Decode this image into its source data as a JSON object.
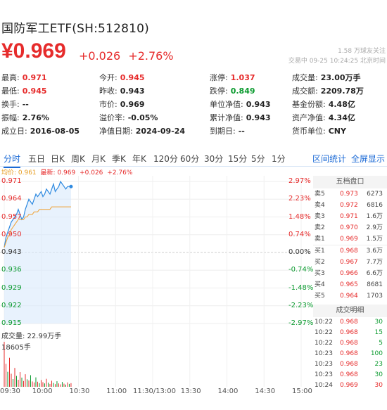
{
  "header": {
    "title": "国防军工ETF(SH:512810)",
    "price": "¥0.969",
    "change": "+0.026",
    "change_pct": "+2.76%",
    "followers": "1.58 万球友关注",
    "status": "交易中 09-25 10:24:25 北京时间"
  },
  "stats": [
    [
      {
        "label": "最高:",
        "value": "0.971",
        "color": "red"
      },
      {
        "label": "今开:",
        "value": "0.945",
        "color": "red"
      },
      {
        "label": "涨停:",
        "value": "1.037",
        "color": "red"
      },
      {
        "label": "成交量:",
        "value": "23.00万手",
        "color": ""
      }
    ],
    [
      {
        "label": "最低:",
        "value": "0.945",
        "color": "red"
      },
      {
        "label": "昨收:",
        "value": "0.943",
        "color": ""
      },
      {
        "label": "跌停:",
        "value": "0.849",
        "color": "green"
      },
      {
        "label": "成交额:",
        "value": "2209.78万",
        "color": ""
      }
    ],
    [
      {
        "label": "换手:",
        "value": "--",
        "color": ""
      },
      {
        "label": "市价:",
        "value": "0.969",
        "color": ""
      },
      {
        "label": "单位净值:",
        "value": "0.943",
        "color": ""
      },
      {
        "label": "基金份额:",
        "value": "4.48亿",
        "color": ""
      }
    ],
    [
      {
        "label": "振幅:",
        "value": "2.76%",
        "color": ""
      },
      {
        "label": "溢价率:",
        "value": "-0.05%",
        "color": ""
      },
      {
        "label": "累计净值:",
        "value": "0.943",
        "color": ""
      },
      {
        "label": "资产净值:",
        "value": "4.34亿",
        "color": ""
      }
    ],
    [
      {
        "label": "成立日:",
        "value": "2016-08-05",
        "color": ""
      },
      {
        "label": "净值日期:",
        "value": "2024-09-24",
        "color": ""
      },
      {
        "label": "到期日:",
        "value": "--",
        "color": ""
      },
      {
        "label": "货币单位:",
        "value": "CNY",
        "color": ""
      }
    ]
  ],
  "tabs": [
    "分时",
    "五日",
    "日K",
    "周K",
    "月K",
    "季K",
    "年K",
    "120分",
    "60分",
    "30分",
    "15分",
    "5分",
    "1分"
  ],
  "tab_links": [
    "区间统计",
    "全屏显示"
  ],
  "avg_line": {
    "avg": "均价: 0.961",
    "latest": "最新: 0.969",
    "chg": "+0.026",
    "pct": "+2.76%"
  },
  "price_axis": [
    "0.971",
    "0.964",
    "0.957",
    "0.950",
    "0.943",
    "0.936",
    "0.929",
    "0.922",
    "0.915"
  ],
  "pct_axis": [
    "2.97%",
    "2.23%",
    "1.48%",
    "0.74%",
    "0.00%",
    "-0.74%",
    "-1.48%",
    "-2.23%",
    "-2.97%"
  ],
  "volume_label": "成交量: 22.99万手",
  "volume_max": "18605手",
  "time_axis": [
    "09:30",
    "10:00",
    "10:30",
    "11:00",
    "11:30/13:00",
    "13:30",
    "14:00",
    "14:30",
    "15:00"
  ],
  "order_book": {
    "title": "五档盘口",
    "asks": [
      {
        "label": "卖5",
        "price": "0.973",
        "vol": "6273"
      },
      {
        "label": "卖4",
        "price": "0.972",
        "vol": "6816"
      },
      {
        "label": "卖3",
        "price": "0.971",
        "vol": "1.6万"
      },
      {
        "label": "卖2",
        "price": "0.970",
        "vol": "2.9万"
      },
      {
        "label": "卖1",
        "price": "0.969",
        "vol": "1.5万"
      }
    ],
    "bids": [
      {
        "label": "买1",
        "price": "0.968",
        "vol": "3.6万"
      },
      {
        "label": "买2",
        "price": "0.967",
        "vol": "7.7万"
      },
      {
        "label": "买3",
        "price": "0.966",
        "vol": "6.6万"
      },
      {
        "label": "买4",
        "price": "0.965",
        "vol": "8681"
      },
      {
        "label": "买5",
        "price": "0.964",
        "vol": "1703"
      }
    ]
  },
  "trades": {
    "title": "成交明细",
    "rows": [
      {
        "time": "10:22",
        "price": "0.968",
        "vol": "30",
        "dir": "green"
      },
      {
        "time": "10:22",
        "price": "0.968",
        "vol": "15",
        "dir": "green"
      },
      {
        "time": "10:22",
        "price": "0.968",
        "vol": "5",
        "dir": "green"
      },
      {
        "time": "10:23",
        "price": "0.968",
        "vol": "100",
        "dir": "green"
      },
      {
        "time": "10:23",
        "price": "0.968",
        "vol": "23",
        "dir": "green"
      },
      {
        "time": "10:23",
        "price": "0.968",
        "vol": "30",
        "dir": "green"
      },
      {
        "time": "10:24",
        "price": "0.969",
        "vol": "30",
        "dir": "red"
      }
    ]
  },
  "chart_data": {
    "type": "line",
    "prev_close": 0.943,
    "ylim": [
      0.915,
      0.971
    ],
    "series": [
      {
        "values": [
          0.945,
          0.949,
          0.951,
          0.953,
          0.955,
          0.956,
          0.957,
          0.958,
          0.96,
          0.958,
          0.956,
          0.957,
          0.96,
          0.962,
          0.964,
          0.963,
          0.962,
          0.964,
          0.966,
          0.965,
          0.966,
          0.967,
          0.965,
          0.966,
          0.968,
          0.967,
          0.966,
          0.968,
          0.97,
          0.967,
          0.968,
          0.969,
          0.971,
          0.97,
          0.969,
          0.968,
          0.969,
          0.969,
          0.969
        ]
      },
      {
        "values": [
          0.945,
          0.947,
          0.949,
          0.95,
          0.952,
          0.953,
          0.954,
          0.955,
          0.956,
          0.956,
          0.956,
          0.956,
          0.957,
          0.957,
          0.958,
          0.958,
          0.958,
          0.959,
          0.959,
          0.959,
          0.96,
          0.96,
          0.96,
          0.96,
          0.96,
          0.96,
          0.96,
          0.961,
          0.961,
          0.961,
          0.961,
          0.961,
          0.961,
          0.961,
          0.961,
          0.961,
          0.961,
          0.961,
          0.961
        ]
      }
    ],
    "volume": [
      18605,
      9500,
      6200,
      12000,
      5400,
      3200,
      7800,
      4500,
      2900,
      6100,
      3800,
      2400,
      5200,
      3100,
      2600,
      4800,
      2200,
      1800,
      3900,
      2100,
      1500,
      2800,
      1900,
      1400,
      3300,
      1700,
      1200,
      2500,
      1600,
      1100,
      2300,
      1400,
      1000,
      2000,
      1300,
      900,
      1800,
      1200,
      1500
    ],
    "volume_colors": [
      "red",
      "red",
      "green",
      "red",
      "red",
      "green",
      "red",
      "green",
      "red",
      "red",
      "green",
      "red",
      "red",
      "green",
      "red",
      "green",
      "red",
      "red",
      "green",
      "red",
      "green",
      "red",
      "red",
      "green",
      "red",
      "green",
      "red",
      "red",
      "green",
      "red",
      "green",
      "red",
      "red",
      "green",
      "red",
      "green",
      "red",
      "green",
      "red"
    ]
  }
}
